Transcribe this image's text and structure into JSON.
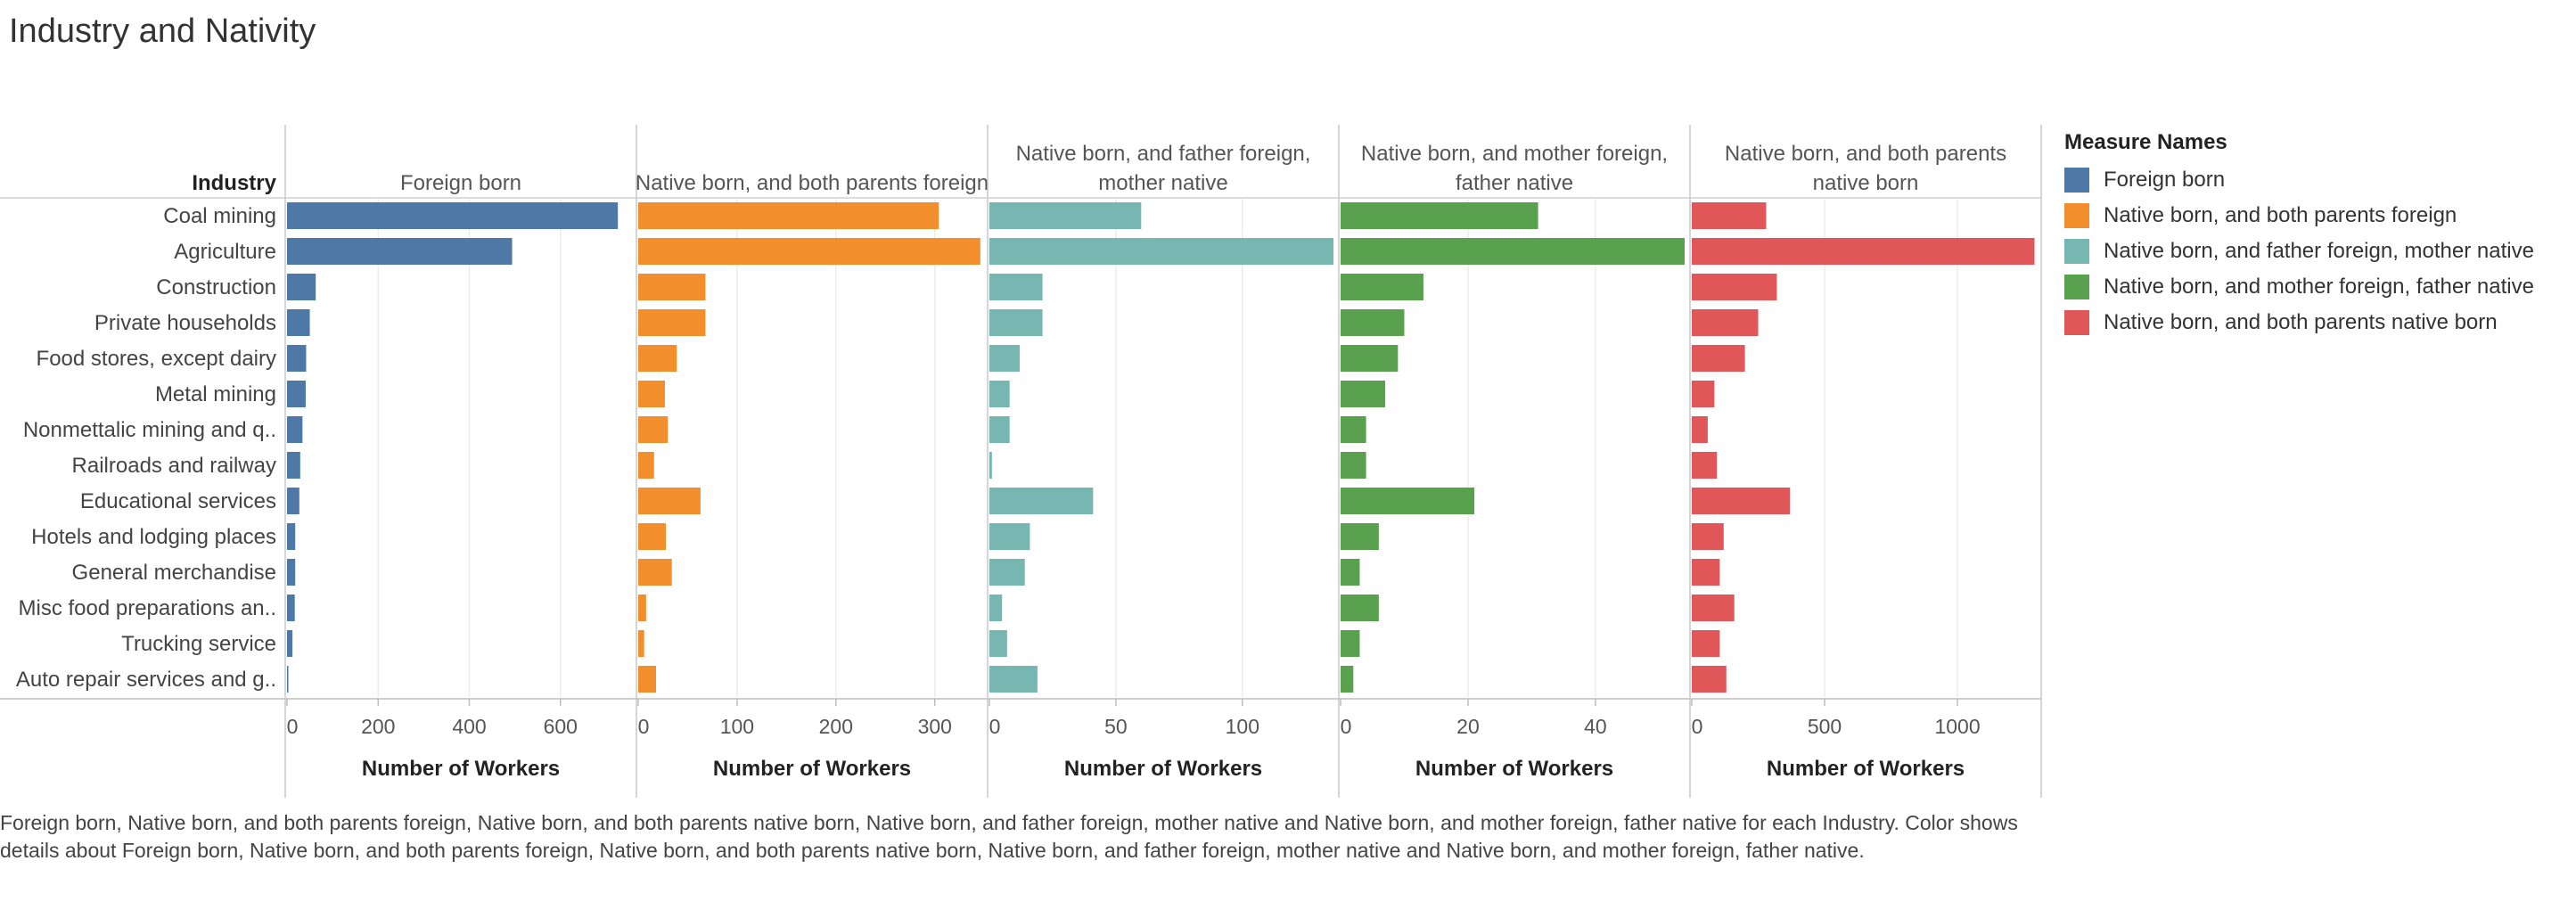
{
  "title": "Industry and Nativity",
  "caption": "Foreign born, Native born, and both parents foreign, Native born, and both parents native born, Native born, and father foreign, mother native and Native born, and mother foreign, father native for each Industry.  Color shows details about Foreign born, Native born, and both parents foreign, Native born, and both parents native born, Native born, and father foreign, mother native and Native born, and mother foreign, father native.",
  "legend": {
    "title": "Measure Names",
    "items": [
      {
        "label": "Foreign born",
        "color": "#4e79a7"
      },
      {
        "label": "Native born, and both parents foreign",
        "color": "#f28e2b"
      },
      {
        "label": "Native born, and father foreign, mother native",
        "color": "#76b7b2"
      },
      {
        "label": "Native born, and mother foreign, father native",
        "color": "#59a14f"
      },
      {
        "label": "Native born, and both parents native born",
        "color": "#e15759"
      }
    ]
  },
  "chart_data": {
    "type": "bar",
    "orientation": "horizontal",
    "row_header": "Industry",
    "categories": [
      "Coal mining",
      "Agriculture",
      "Construction",
      "Private households",
      "Food stores, except dairy",
      "Metal mining",
      "Nonmettalic mining and q..",
      "Railroads and railway",
      "Educational services",
      "Hotels and lodging places",
      "General merchandise",
      "Misc food preparations an..",
      "Trucking service",
      "Auto repair services and g.."
    ],
    "series": [
      {
        "name": "Foreign born",
        "header": [
          "Foreign born"
        ],
        "color": "#4e79a7",
        "xlabel": "Number of Workers",
        "xlim": [
          0,
          755
        ],
        "ticks": [
          0,
          200,
          400,
          600
        ],
        "values": [
          726,
          494,
          63,
          50,
          42,
          41,
          34,
          29,
          27,
          18,
          18,
          17,
          12,
          3
        ]
      },
      {
        "name": "Native born, and both parents foreign",
        "header": [
          "Native born, and both parents foreign"
        ],
        "color": "#f28e2b",
        "xlabel": "Number of Workers",
        "xlim": [
          0,
          348
        ],
        "ticks": [
          0,
          100,
          200,
          300
        ],
        "values": [
          304,
          346,
          68,
          68,
          39,
          27,
          30,
          16,
          63,
          28,
          34,
          8,
          6,
          18
        ]
      },
      {
        "name": "Native born, and father foreign, mother native",
        "header": [
          "Native born, and father foreign,",
          "mother native"
        ],
        "color": "#76b7b2",
        "xlabel": "Number of Workers",
        "xlim": [
          0,
          136
        ],
        "ticks": [
          0,
          50,
          100
        ],
        "values": [
          60,
          136,
          21,
          21,
          12,
          8,
          8,
          1,
          41,
          16,
          14,
          5,
          7,
          19
        ]
      },
      {
        "name": "Native born, and mother foreign, father native",
        "header": [
          "Native born, and mother foreign,",
          "father native"
        ],
        "color": "#59a14f",
        "xlabel": "Number of Workers",
        "xlim": [
          0,
          54
        ],
        "ticks": [
          0,
          20,
          40
        ],
        "values": [
          31,
          54,
          13,
          10,
          9,
          7,
          4,
          4,
          21,
          6,
          3,
          6,
          3,
          2
        ]
      },
      {
        "name": "Native born, and both parents native born",
        "header": [
          "Native born, and both parents",
          "native born"
        ],
        "color": "#e15759",
        "xlabel": "Number of Workers",
        "xlim": [
          0,
          1295
        ],
        "ticks": [
          0,
          500,
          1000
        ],
        "values": [
          280,
          1290,
          320,
          250,
          200,
          85,
          60,
          95,
          370,
          120,
          105,
          160,
          105,
          130
        ]
      }
    ]
  }
}
